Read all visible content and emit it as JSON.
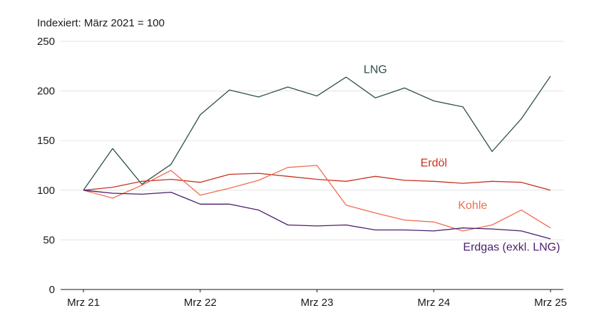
{
  "chart_data": {
    "type": "line",
    "subtitle": "Indexiert: März 2021 = 100",
    "xlabel": "",
    "ylabel": "",
    "ylim": [
      0,
      250
    ],
    "yticks": [
      0,
      50,
      100,
      150,
      200,
      250
    ],
    "grid": true,
    "legend": "inline labels",
    "x": [
      "Mrz 21",
      "Jun 21",
      "Sep 21",
      "Dez 21",
      "Mrz 22",
      "Jun 22",
      "Sep 22",
      "Dez 22",
      "Mrz 23",
      "Jun 23",
      "Sep 23",
      "Dez 23",
      "Mrz 24",
      "Jun 24",
      "Sep 24",
      "Dez 24",
      "Mrz 25"
    ],
    "xtick_labels": [
      "Mrz 21",
      "Mrz 22",
      "Mrz 23",
      "Mrz 24",
      "Mrz 25"
    ],
    "series": [
      {
        "name": "LNG",
        "color": "#2f4f4f",
        "width": 1.3,
        "label_x": "Sep 23",
        "label_y": 218,
        "values": [
          100,
          142,
          106,
          126,
          176,
          201,
          194,
          204,
          195,
          214,
          193,
          203,
          190,
          184,
          139,
          172,
          215
        ]
      },
      {
        "name": "Erdöl",
        "color": "#c8321e",
        "width": 1.3,
        "label_x": "Mrz 24",
        "label_y": 124,
        "values": [
          100,
          103,
          109,
          111,
          108,
          116,
          117,
          114,
          111,
          109,
          114,
          110,
          109,
          107,
          109,
          108,
          100
        ]
      },
      {
        "name": "Kohle",
        "color": "#f26d50",
        "width": 1.3,
        "label_x": "Jul 24",
        "label_y": 81,
        "values": [
          100,
          92,
          105,
          120,
          95,
          102,
          110,
          123,
          125,
          85,
          77,
          70,
          68,
          59,
          65,
          80,
          62
        ]
      },
      {
        "name": "Erdgas (exkl. LNG)",
        "color": "#4b1e6e",
        "width": 1.3,
        "label_x": "Nov 24",
        "label_y": 39,
        "values": [
          100,
          97,
          96,
          98,
          86,
          86,
          80,
          65,
          64,
          65,
          60,
          60,
          59,
          62,
          61,
          59,
          51
        ]
      }
    ]
  }
}
